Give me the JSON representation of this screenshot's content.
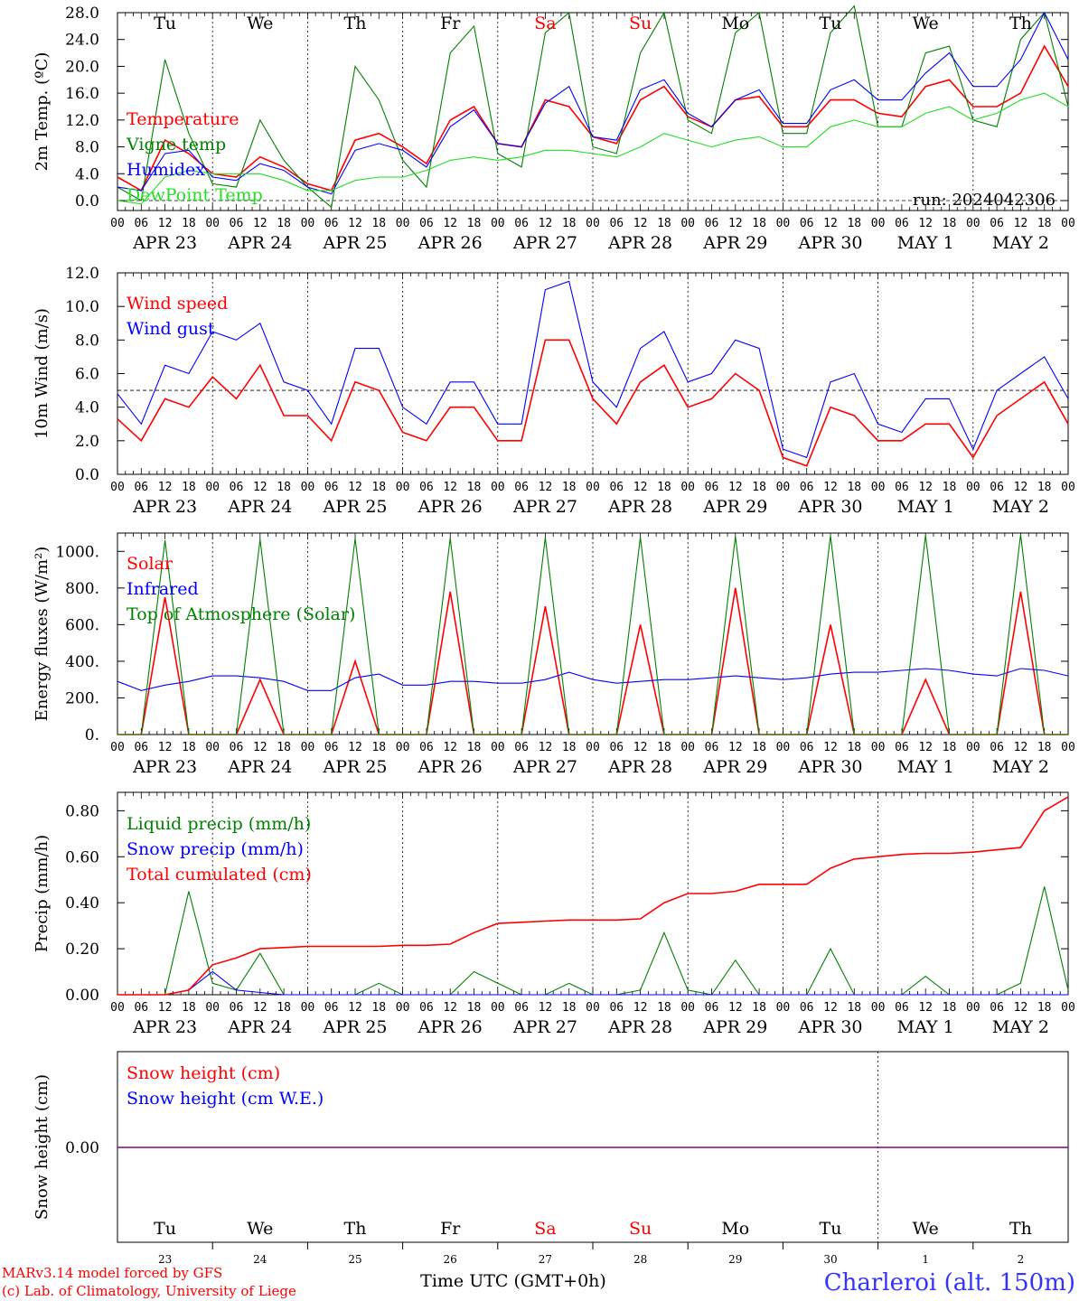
{
  "days_header": [
    "Tu",
    "We",
    "Th",
    "Fr",
    "Sa",
    "Su",
    "Mo",
    "Tu",
    "We",
    "Th"
  ],
  "weekend_days": [
    "Sa",
    "Su"
  ],
  "date_labels": [
    "APR 23",
    "APR 24",
    "APR 25",
    "APR 26",
    "APR 27",
    "APR 28",
    "APR 29",
    "APR 30",
    "MAY  1",
    "MAY  2"
  ],
  "hour_ticks": [
    "00",
    "06",
    "12",
    "18"
  ],
  "bottom_day_numbers": [
    "23",
    "24",
    "25",
    "26",
    "27",
    "28",
    "29",
    "30",
    "1",
    "2"
  ],
  "footer": {
    "model_line": "MARv3.14 model forced by GFS",
    "copyright_line": "(c) Lab. of Climatology, University of Liege",
    "time_axis_label": "Time UTC (GMT+0h)",
    "station": "Charleroi (alt. 150m)"
  },
  "colors": {
    "red": "#ff0000",
    "green": "#008000",
    "blue": "#0000ff",
    "lightgreen": "#22dd22",
    "purple": "#800080",
    "weekend": "#ff0000",
    "station": "#3333ff"
  },
  "chart_data": [
    {
      "id": "temperature",
      "type": "line",
      "ylabel": "2m Temp. (ºC)",
      "ylim": [
        -1,
        28
      ],
      "yticks": [
        "0.0",
        "4.0",
        "8.0",
        "12.0",
        "16.0",
        "20.0",
        "24.0",
        "28.0"
      ],
      "run_label": "run: 2024042306",
      "reference_line": 0,
      "x": [
        0,
        6,
        12,
        18,
        24,
        30,
        36,
        42,
        48,
        54,
        60,
        66,
        72,
        78,
        84,
        90,
        96,
        102,
        108,
        114,
        120,
        126,
        132,
        138,
        144,
        150,
        156,
        162,
        168,
        174,
        180,
        186,
        192,
        198,
        204,
        210,
        216,
        222,
        228,
        234,
        240
      ],
      "series": [
        {
          "name": "Temperature",
          "color": "red",
          "values": [
            3.5,
            1.5,
            9,
            7,
            4,
            3.5,
            6.5,
            5,
            2.5,
            1.5,
            9,
            10,
            8,
            5.5,
            12,
            14,
            8.5,
            8,
            15,
            14,
            9.5,
            8.5,
            15,
            17,
            12.5,
            11,
            15,
            15.5,
            11,
            11,
            15,
            15,
            13,
            12.5,
            17,
            18,
            14,
            14,
            16,
            23,
            17
          ]
        },
        {
          "name": "Vigne temp",
          "color": "green",
          "values": [
            2,
            0,
            21,
            10,
            2.5,
            2,
            12,
            6,
            2,
            -1,
            20,
            15,
            6,
            2,
            22,
            26,
            7,
            5,
            25,
            28,
            8,
            7,
            22,
            28,
            12,
            10,
            25,
            28,
            10,
            10,
            25,
            29,
            11,
            11,
            22,
            23,
            12,
            11,
            24,
            28,
            14
          ]
        },
        {
          "name": "Humidex",
          "color": "blue",
          "values": [
            2,
            1.5,
            7,
            7.5,
            3.5,
            3,
            5.5,
            4.5,
            2,
            1,
            7.5,
            8.5,
            7.5,
            5,
            11,
            13.5,
            8.5,
            8,
            14.5,
            17,
            9.5,
            9,
            16.5,
            18,
            13,
            11,
            15,
            16.5,
            11.5,
            11.5,
            16.5,
            18,
            15,
            15,
            19,
            22,
            17,
            17,
            21,
            28,
            21
          ]
        },
        {
          "name": "DewPoint Temp",
          "color": "lightgreen",
          "values": [
            0,
            -0.5,
            3.5,
            4.5,
            4,
            4,
            4,
            3,
            1.5,
            1.5,
            3,
            3.5,
            3.5,
            4.5,
            6,
            6.5,
            6,
            6.5,
            7.5,
            7.5,
            7,
            6.5,
            8,
            10,
            9,
            8,
            9,
            9.5,
            8,
            8,
            11,
            12,
            11,
            11,
            13,
            14,
            12,
            13,
            15,
            16,
            14
          ]
        }
      ]
    },
    {
      "id": "wind",
      "type": "line",
      "ylabel": "10m Wind (m/s)",
      "ylim": [
        0,
        12
      ],
      "yticks": [
        "0.0",
        "2.0",
        "4.0",
        "6.0",
        "8.0",
        "10.0",
        "12.0"
      ],
      "reference_line": 5,
      "x": [
        0,
        6,
        12,
        18,
        24,
        30,
        36,
        42,
        48,
        54,
        60,
        66,
        72,
        78,
        84,
        90,
        96,
        102,
        108,
        114,
        120,
        126,
        132,
        138,
        144,
        150,
        156,
        162,
        168,
        174,
        180,
        186,
        192,
        198,
        204,
        210,
        216,
        222,
        228,
        234,
        240
      ],
      "series": [
        {
          "name": "Wind speed",
          "color": "red",
          "values": [
            3.3,
            2,
            4.5,
            4,
            5.8,
            4.5,
            6.5,
            3.5,
            3.5,
            2,
            5.5,
            5,
            2.5,
            2,
            4,
            4,
            2,
            2,
            8,
            8,
            4.5,
            3,
            5.5,
            6.5,
            4,
            4.5,
            6,
            5,
            1,
            0.5,
            4,
            3.5,
            2,
            2,
            3,
            3,
            1,
            3.5,
            4.5,
            5.5,
            3
          ]
        },
        {
          "name": "Wind gust",
          "color": "blue",
          "values": [
            4.8,
            3,
            6.5,
            6,
            8.5,
            8,
            9,
            5.5,
            5,
            3,
            7.5,
            7.5,
            4,
            3,
            5.5,
            5.5,
            3,
            3,
            11,
            11.5,
            5.5,
            4,
            7.5,
            8.5,
            5.5,
            6,
            8,
            7.5,
            1.5,
            1,
            5.5,
            6,
            3,
            2.5,
            4.5,
            4.5,
            1.5,
            5,
            6,
            7,
            4.5
          ]
        }
      ]
    },
    {
      "id": "energy",
      "type": "line",
      "ylabel": "Energy fluxes (W/m²)",
      "ylim": [
        0,
        1100
      ],
      "yticks": [
        "0.",
        "200.",
        "400.",
        "600.",
        "800.",
        "1000."
      ],
      "x": [
        0,
        6,
        12,
        18,
        24,
        30,
        36,
        42,
        48,
        54,
        60,
        66,
        72,
        78,
        84,
        90,
        96,
        102,
        108,
        114,
        120,
        126,
        132,
        138,
        144,
        150,
        156,
        162,
        168,
        174,
        180,
        186,
        192,
        198,
        204,
        210,
        216,
        222,
        228,
        234,
        240
      ],
      "series": [
        {
          "name": "Solar",
          "color": "red",
          "values": [
            0,
            0,
            750,
            0,
            0,
            0,
            300,
            0,
            0,
            0,
            400,
            0,
            0,
            0,
            780,
            0,
            0,
            0,
            700,
            0,
            0,
            0,
            600,
            0,
            0,
            0,
            800,
            0,
            0,
            0,
            600,
            0,
            0,
            0,
            300,
            0,
            0,
            0,
            780,
            0,
            0
          ]
        },
        {
          "name": "Infrared",
          "color": "blue",
          "values": [
            290,
            240,
            270,
            290,
            320,
            320,
            310,
            290,
            240,
            240,
            310,
            330,
            270,
            270,
            290,
            290,
            280,
            280,
            300,
            340,
            300,
            280,
            290,
            300,
            300,
            310,
            320,
            310,
            300,
            310,
            330,
            340,
            340,
            350,
            360,
            350,
            330,
            320,
            360,
            350,
            320
          ]
        },
        {
          "name": "Top of Atmosphere (Solar)",
          "color": "green",
          "values": [
            0,
            0,
            1060,
            0,
            0,
            0,
            1065,
            0,
            0,
            0,
            1070,
            0,
            0,
            0,
            1072,
            0,
            0,
            0,
            1075,
            0,
            0,
            0,
            1078,
            0,
            0,
            0,
            1082,
            0,
            0,
            0,
            1085,
            0,
            0,
            0,
            1088,
            0,
            0,
            0,
            1092,
            0,
            0
          ]
        }
      ]
    },
    {
      "id": "precip",
      "type": "line",
      "ylabel": "Precip (mm/h)",
      "ylim": [
        0,
        0.88
      ],
      "yticks": [
        "0.00",
        "0.20",
        "0.40",
        "0.60",
        "0.80"
      ],
      "x": [
        0,
        6,
        12,
        18,
        24,
        30,
        36,
        42,
        48,
        54,
        60,
        66,
        72,
        78,
        84,
        90,
        96,
        102,
        108,
        114,
        120,
        126,
        132,
        138,
        144,
        150,
        156,
        162,
        168,
        174,
        180,
        186,
        192,
        198,
        204,
        210,
        216,
        222,
        228,
        234,
        240
      ],
      "series": [
        {
          "name": "Liquid precip (mm/h)",
          "color": "green",
          "values": [
            0,
            0,
            0,
            0.45,
            0.05,
            0.02,
            0.18,
            0,
            0,
            0,
            0,
            0.05,
            0,
            0,
            0,
            0.1,
            0.05,
            0,
            0,
            0.05,
            0,
            0,
            0.02,
            0.27,
            0.02,
            0,
            0.15,
            0,
            0,
            0,
            0.2,
            0,
            0,
            0,
            0.08,
            0,
            0,
            0,
            0.05,
            0.47,
            0.02
          ]
        },
        {
          "name": "Snow precip (mm/h)",
          "color": "blue",
          "values": [
            0,
            0,
            0,
            0.02,
            0.1,
            0.02,
            0.01,
            0,
            0,
            0,
            0,
            0,
            0,
            0,
            0,
            0,
            0,
            0,
            0,
            0,
            0,
            0,
            0,
            0,
            0,
            0,
            0,
            0,
            0,
            0,
            0,
            0,
            0,
            0,
            0,
            0,
            0,
            0,
            0,
            0,
            0
          ]
        },
        {
          "name": "Total cumulated (cm)",
          "color": "red",
          "values": [
            0,
            0,
            0,
            0.02,
            0.13,
            0.16,
            0.2,
            0.205,
            0.21,
            0.21,
            0.21,
            0.21,
            0.215,
            0.215,
            0.22,
            0.27,
            0.31,
            0.315,
            0.32,
            0.325,
            0.325,
            0.325,
            0.33,
            0.4,
            0.44,
            0.44,
            0.45,
            0.48,
            0.48,
            0.48,
            0.55,
            0.59,
            0.6,
            0.61,
            0.615,
            0.615,
            0.62,
            0.63,
            0.64,
            0.8,
            0.86
          ]
        }
      ]
    },
    {
      "id": "snow",
      "type": "line",
      "ylabel": "Snow height (cm)",
      "ylim": [
        -1,
        1
      ],
      "yticks": [
        "0.00"
      ],
      "x": [
        0,
        240
      ],
      "series": [
        {
          "name": "Snow height (cm)",
          "color": "red",
          "values": [
            0,
            0
          ]
        },
        {
          "name": "Snow height (cm W.E.)",
          "color": "blue",
          "values": [
            0,
            0
          ]
        }
      ]
    }
  ]
}
